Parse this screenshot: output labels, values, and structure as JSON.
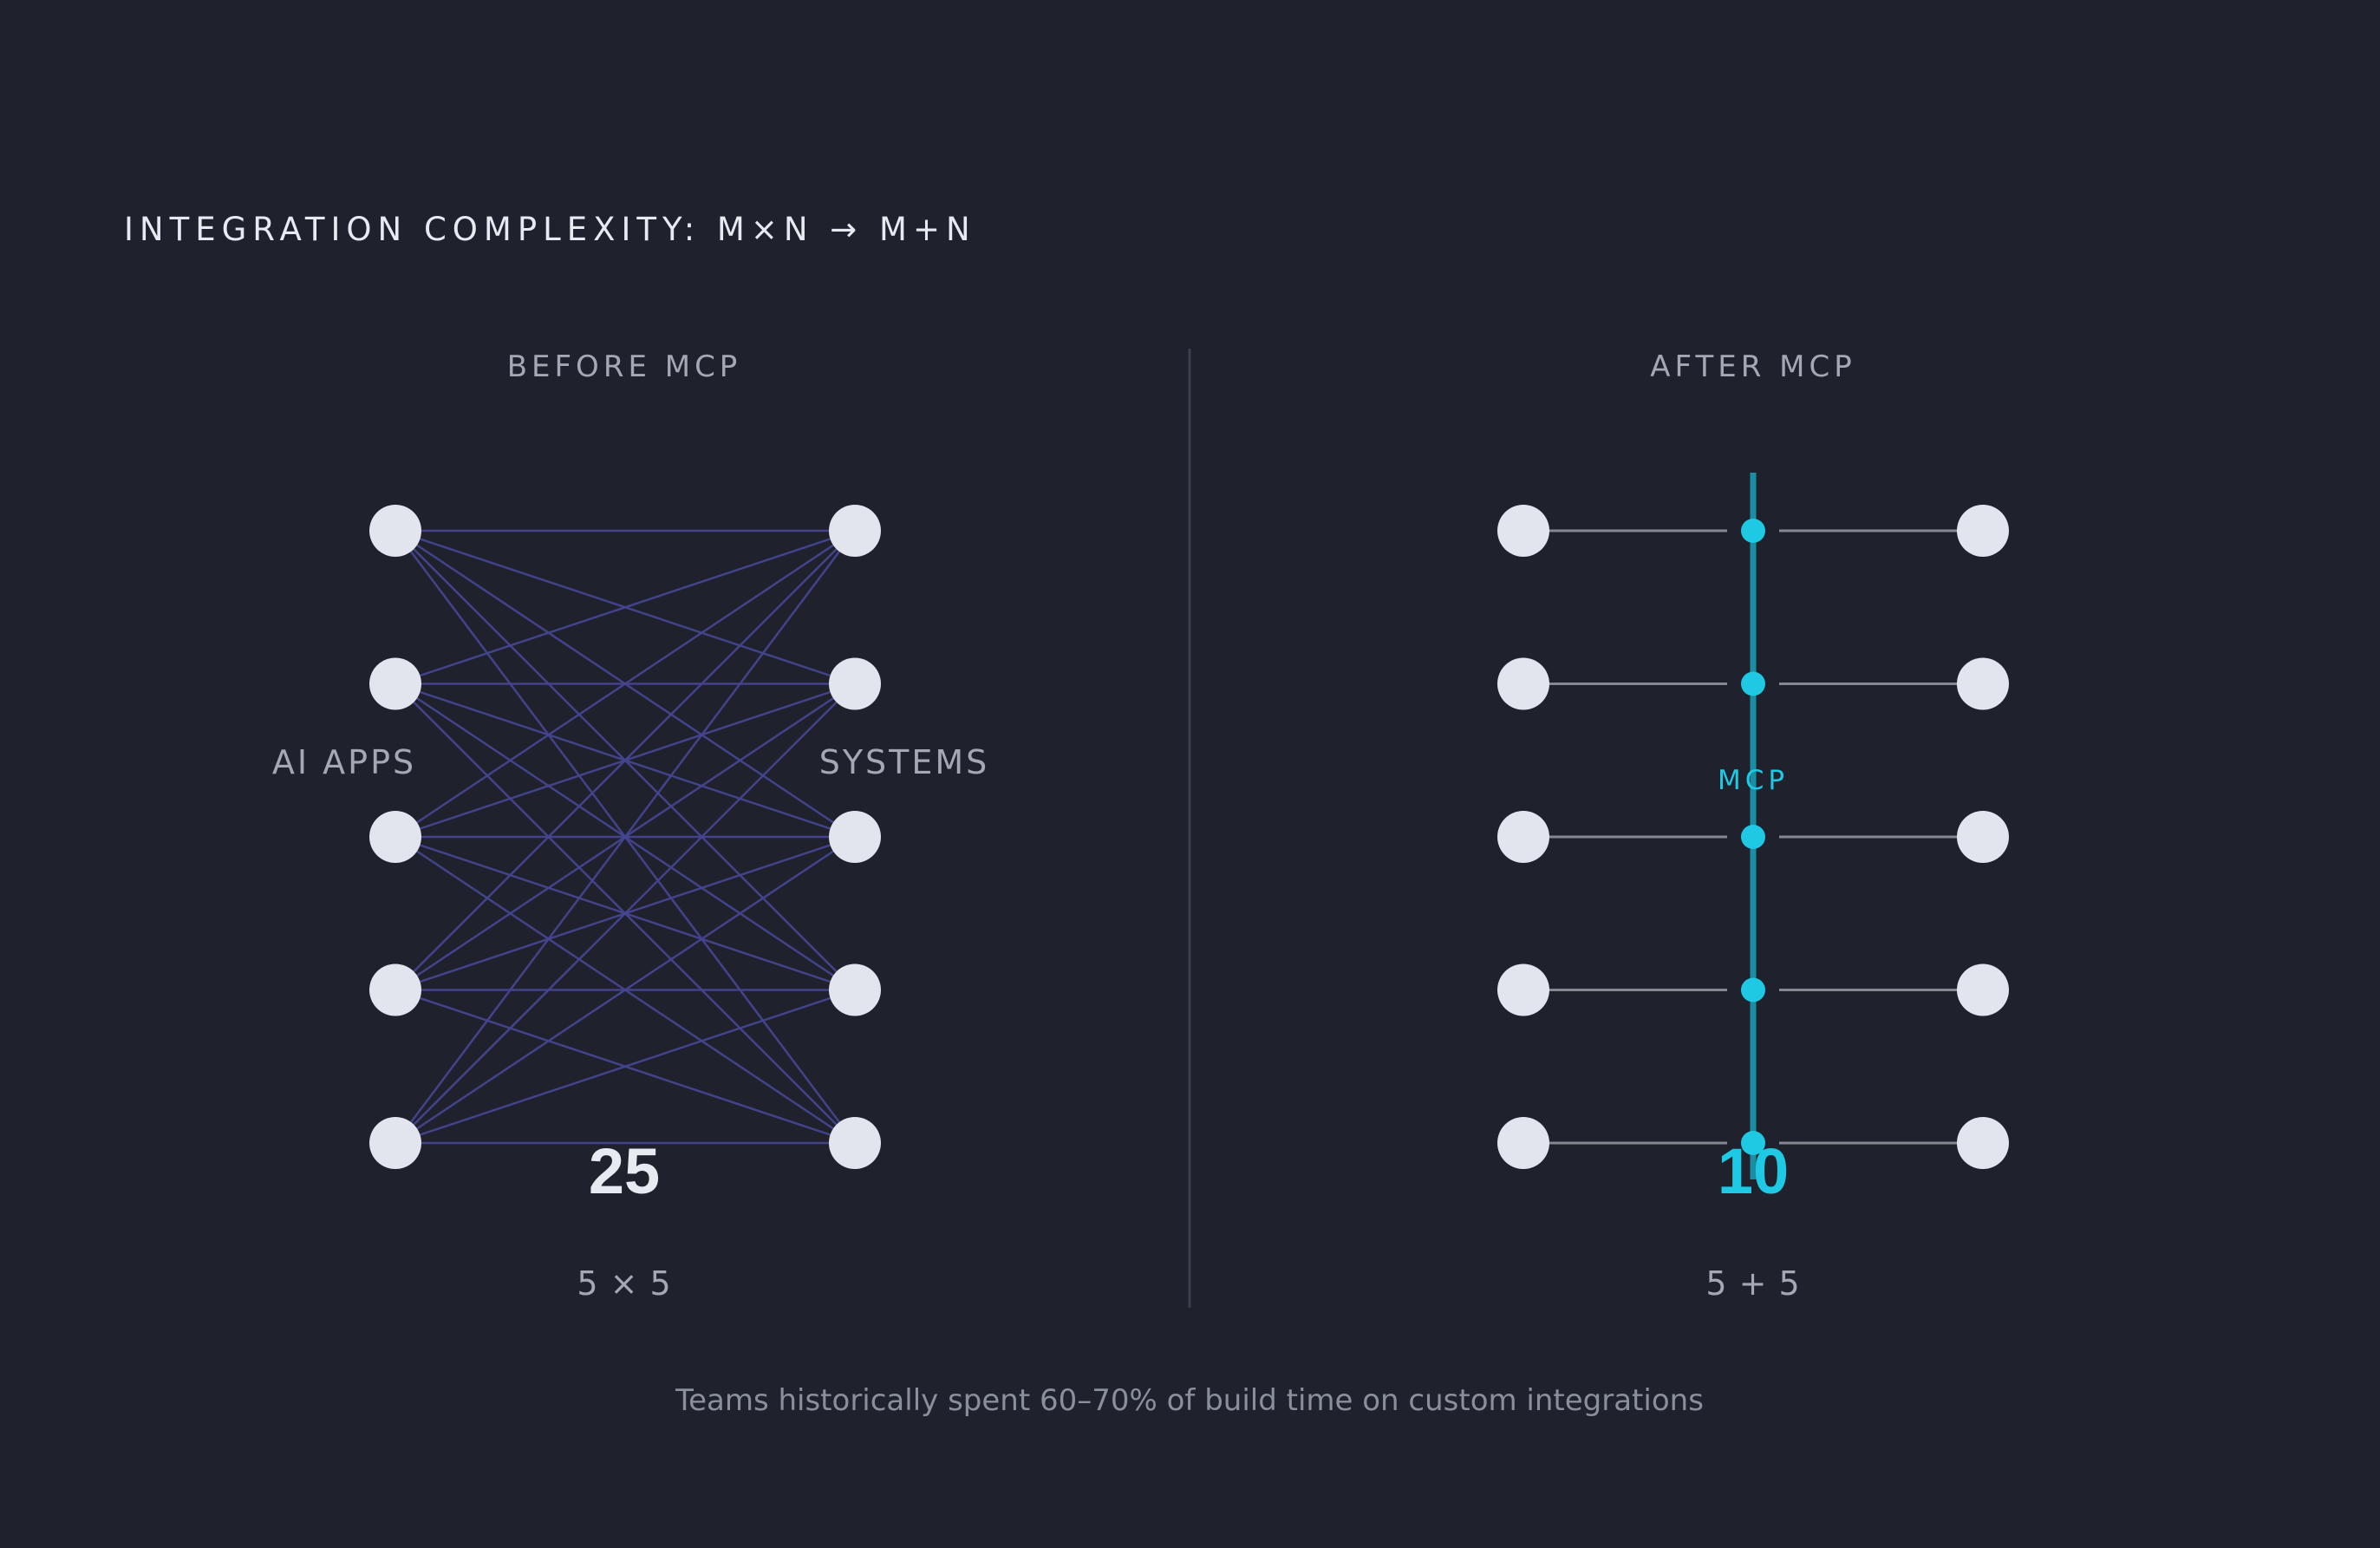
{
  "title": "INTEGRATION COMPLEXITY: M×N → M+N",
  "before": {
    "heading": "BEFORE MCP",
    "left_label": "AI APPS",
    "right_label": "SYSTEMS",
    "m": 5,
    "n": 5,
    "count": "25",
    "formula": "5 × 5"
  },
  "after": {
    "heading": "AFTER MCP",
    "hub_label": "MCP",
    "m": 5,
    "n": 5,
    "count": "10",
    "formula": "5 + 5"
  },
  "footnote": "Teams historically spent 60–70% of build time on custom integrations",
  "colors": {
    "background": "#1f222c",
    "node": "#e2e5ee",
    "mesh_edge": "#46458f",
    "spoke": "#85888f",
    "hub": "#1a8ea3",
    "hub_dot": "#1fc8e3",
    "divider": "#3b3f4b"
  }
}
